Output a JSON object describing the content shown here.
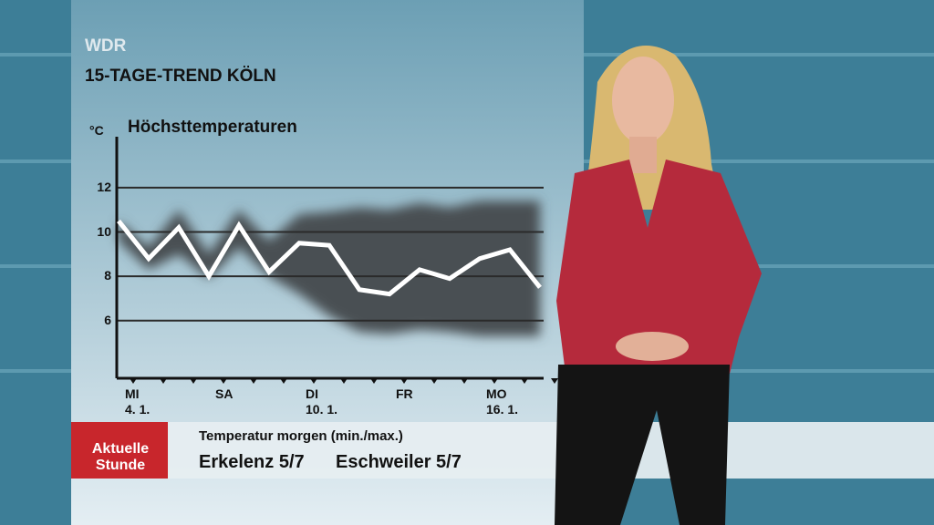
{
  "header": {
    "logo": "WDR",
    "title": "15-TAGE-TREND KÖLN"
  },
  "chart_data": {
    "type": "line",
    "title": "Höchsttemperaturen",
    "y_label": "°C",
    "categories": [
      "MI\n4. 1.",
      null,
      null,
      "SA",
      null,
      null,
      "DI\n10. 1.",
      null,
      null,
      "FR",
      null,
      null,
      "MO\n16. 1.",
      null,
      null
    ],
    "values": [
      10.5,
      8.8,
      10.2,
      8.0,
      10.3,
      8.2,
      9.5,
      9.4,
      7.4,
      7.2,
      8.3,
      7.9,
      8.8,
      9.2,
      7.5
    ],
    "color": "#ffffff",
    "band": {
      "color": "#4a4f52",
      "low": [
        9.6,
        8.3,
        9.0,
        7.9,
        9.3,
        8.0,
        7.2,
        6.2,
        5.5,
        5.4,
        5.6,
        5.5,
        5.3,
        5.3,
        5.3
      ],
      "high": [
        10.5,
        9.3,
        11.0,
        9.0,
        11.0,
        9.6,
        10.8,
        10.9,
        11.1,
        11.0,
        11.3,
        11.1,
        11.4,
        11.4,
        11.4
      ]
    },
    "ylim": [
      3.4,
      14.3
    ],
    "yticks": [
      6,
      8,
      10,
      12
    ],
    "grid": true
  },
  "ticker": {
    "brand": "Aktuelle\nStunde",
    "heading": "Temperatur morgen (min./max.)",
    "items": [
      "Erkelenz 5/7",
      "Eschweiler 5/7"
    ]
  }
}
